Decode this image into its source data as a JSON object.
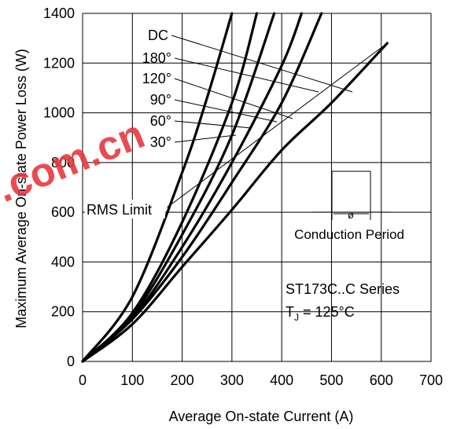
{
  "chart_data": {
    "type": "line",
    "xlabel": "Average On-state Current (A)",
    "ylabel": "Maximum Average On-state Power Loss (W)",
    "xlim": [
      0,
      700
    ],
    "ylim": [
      0,
      1400
    ],
    "xticks": [
      0,
      100,
      200,
      300,
      400,
      500,
      600,
      700
    ],
    "yticks": [
      0,
      200,
      400,
      600,
      800,
      1000,
      1200,
      1400
    ],
    "grid": true,
    "series": [
      {
        "name": "DC",
        "x": [
          0,
          100,
          200,
          300,
          400,
          500,
          612
        ],
        "y": [
          0,
          150,
          380,
          610,
          850,
          1040,
          1280
        ]
      },
      {
        "name": "180°",
        "x": [
          0,
          100,
          200,
          300,
          400,
          480
        ],
        "y": [
          0,
          170,
          420,
          720,
          1040,
          1400
        ]
      },
      {
        "name": "120°",
        "x": [
          0,
          100,
          200,
          300,
          400,
          440
        ],
        "y": [
          0,
          175,
          460,
          800,
          1190,
          1400
        ]
      },
      {
        "name": "90°",
        "x": [
          0,
          100,
          200,
          300,
          385
        ],
        "y": [
          0,
          185,
          510,
          910,
          1400
        ]
      },
      {
        "name": "60°",
        "x": [
          0,
          100,
          200,
          300,
          350
        ],
        "y": [
          0,
          195,
          560,
          1040,
          1400
        ]
      },
      {
        "name": "30°",
        "x": [
          0,
          100,
          200,
          250,
          300
        ],
        "y": [
          0,
          260,
          760,
          1060,
          1400
        ]
      }
    ],
    "rms_limit": {
      "label": "RMS Limit",
      "x": [
        170,
        612
      ],
      "y": [
        620,
        1280
      ]
    },
    "annotations": {
      "conduction_period": "Conduction Period",
      "conduction_symbol": "ø",
      "series_title": "ST173C..C Series",
      "temperature_prefix": "T",
      "temperature_subscript": "J",
      "temperature_value": " = 125°C"
    },
    "watermark": ".com.cn"
  }
}
